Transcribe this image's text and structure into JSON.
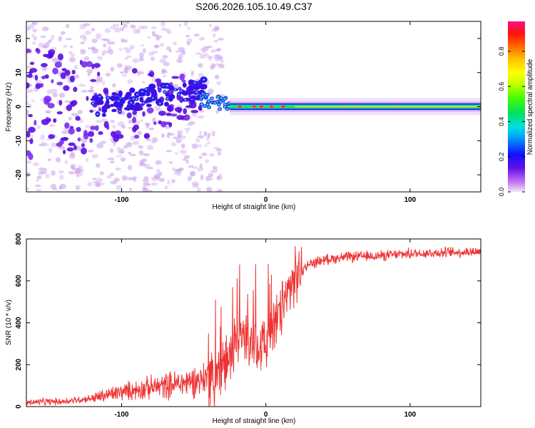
{
  "chart_data": [
    {
      "type": "heatmap",
      "title": "S206.2026.105.10.49.C37",
      "xlabel": "Height of straight line (km)",
      "ylabel": "Frequency (Hz)",
      "xlim": [
        -166,
        149
      ],
      "ylim": [
        -25,
        25
      ],
      "xticks": [
        -100,
        0,
        100
      ],
      "yticks": [
        -20,
        -10,
        0,
        10,
        20
      ],
      "colorbar": {
        "label": "Normalized spectral amplitude",
        "range": [
          0,
          0.97
        ],
        "ticks": [
          0.0,
          0.2,
          0.4,
          0.6,
          0.8
        ],
        "tick_labels": [
          "0.0",
          "0.2",
          "0.4",
          "0.6",
          "0.8"
        ]
      },
      "features": {
        "noise_region_x": [
          -166,
          -45
        ],
        "transition_x": [
          -45,
          -25
        ],
        "steady_line_x": [
          -25,
          149
        ],
        "steady_line_frequency_hz": 0
      }
    },
    {
      "type": "line",
      "xlabel": "Height of straight line (km)",
      "ylabel": "SNR (10 * v/v)",
      "xlim": [
        -166,
        149
      ],
      "ylim": [
        0,
        800
      ],
      "xticks": [
        -100,
        0,
        100
      ],
      "yticks": [
        0,
        200,
        400,
        600,
        800
      ],
      "series": [
        {
          "name": "SNR",
          "color": "#ee3333",
          "trend_x": [
            -166,
            -140,
            -120,
            -100,
            -80,
            -60,
            -45,
            -35,
            -28,
            -22,
            -15,
            -10,
            -5,
            0,
            5,
            10,
            15,
            20,
            25,
            30,
            40,
            50,
            60,
            80,
            100,
            120,
            149
          ],
          "trend_y": [
            20,
            25,
            40,
            70,
            90,
            110,
            130,
            150,
            200,
            280,
            340,
            320,
            300,
            300,
            380,
            440,
            540,
            610,
            650,
            680,
            700,
            710,
            715,
            720,
            730,
            735,
            740
          ]
        }
      ]
    }
  ]
}
